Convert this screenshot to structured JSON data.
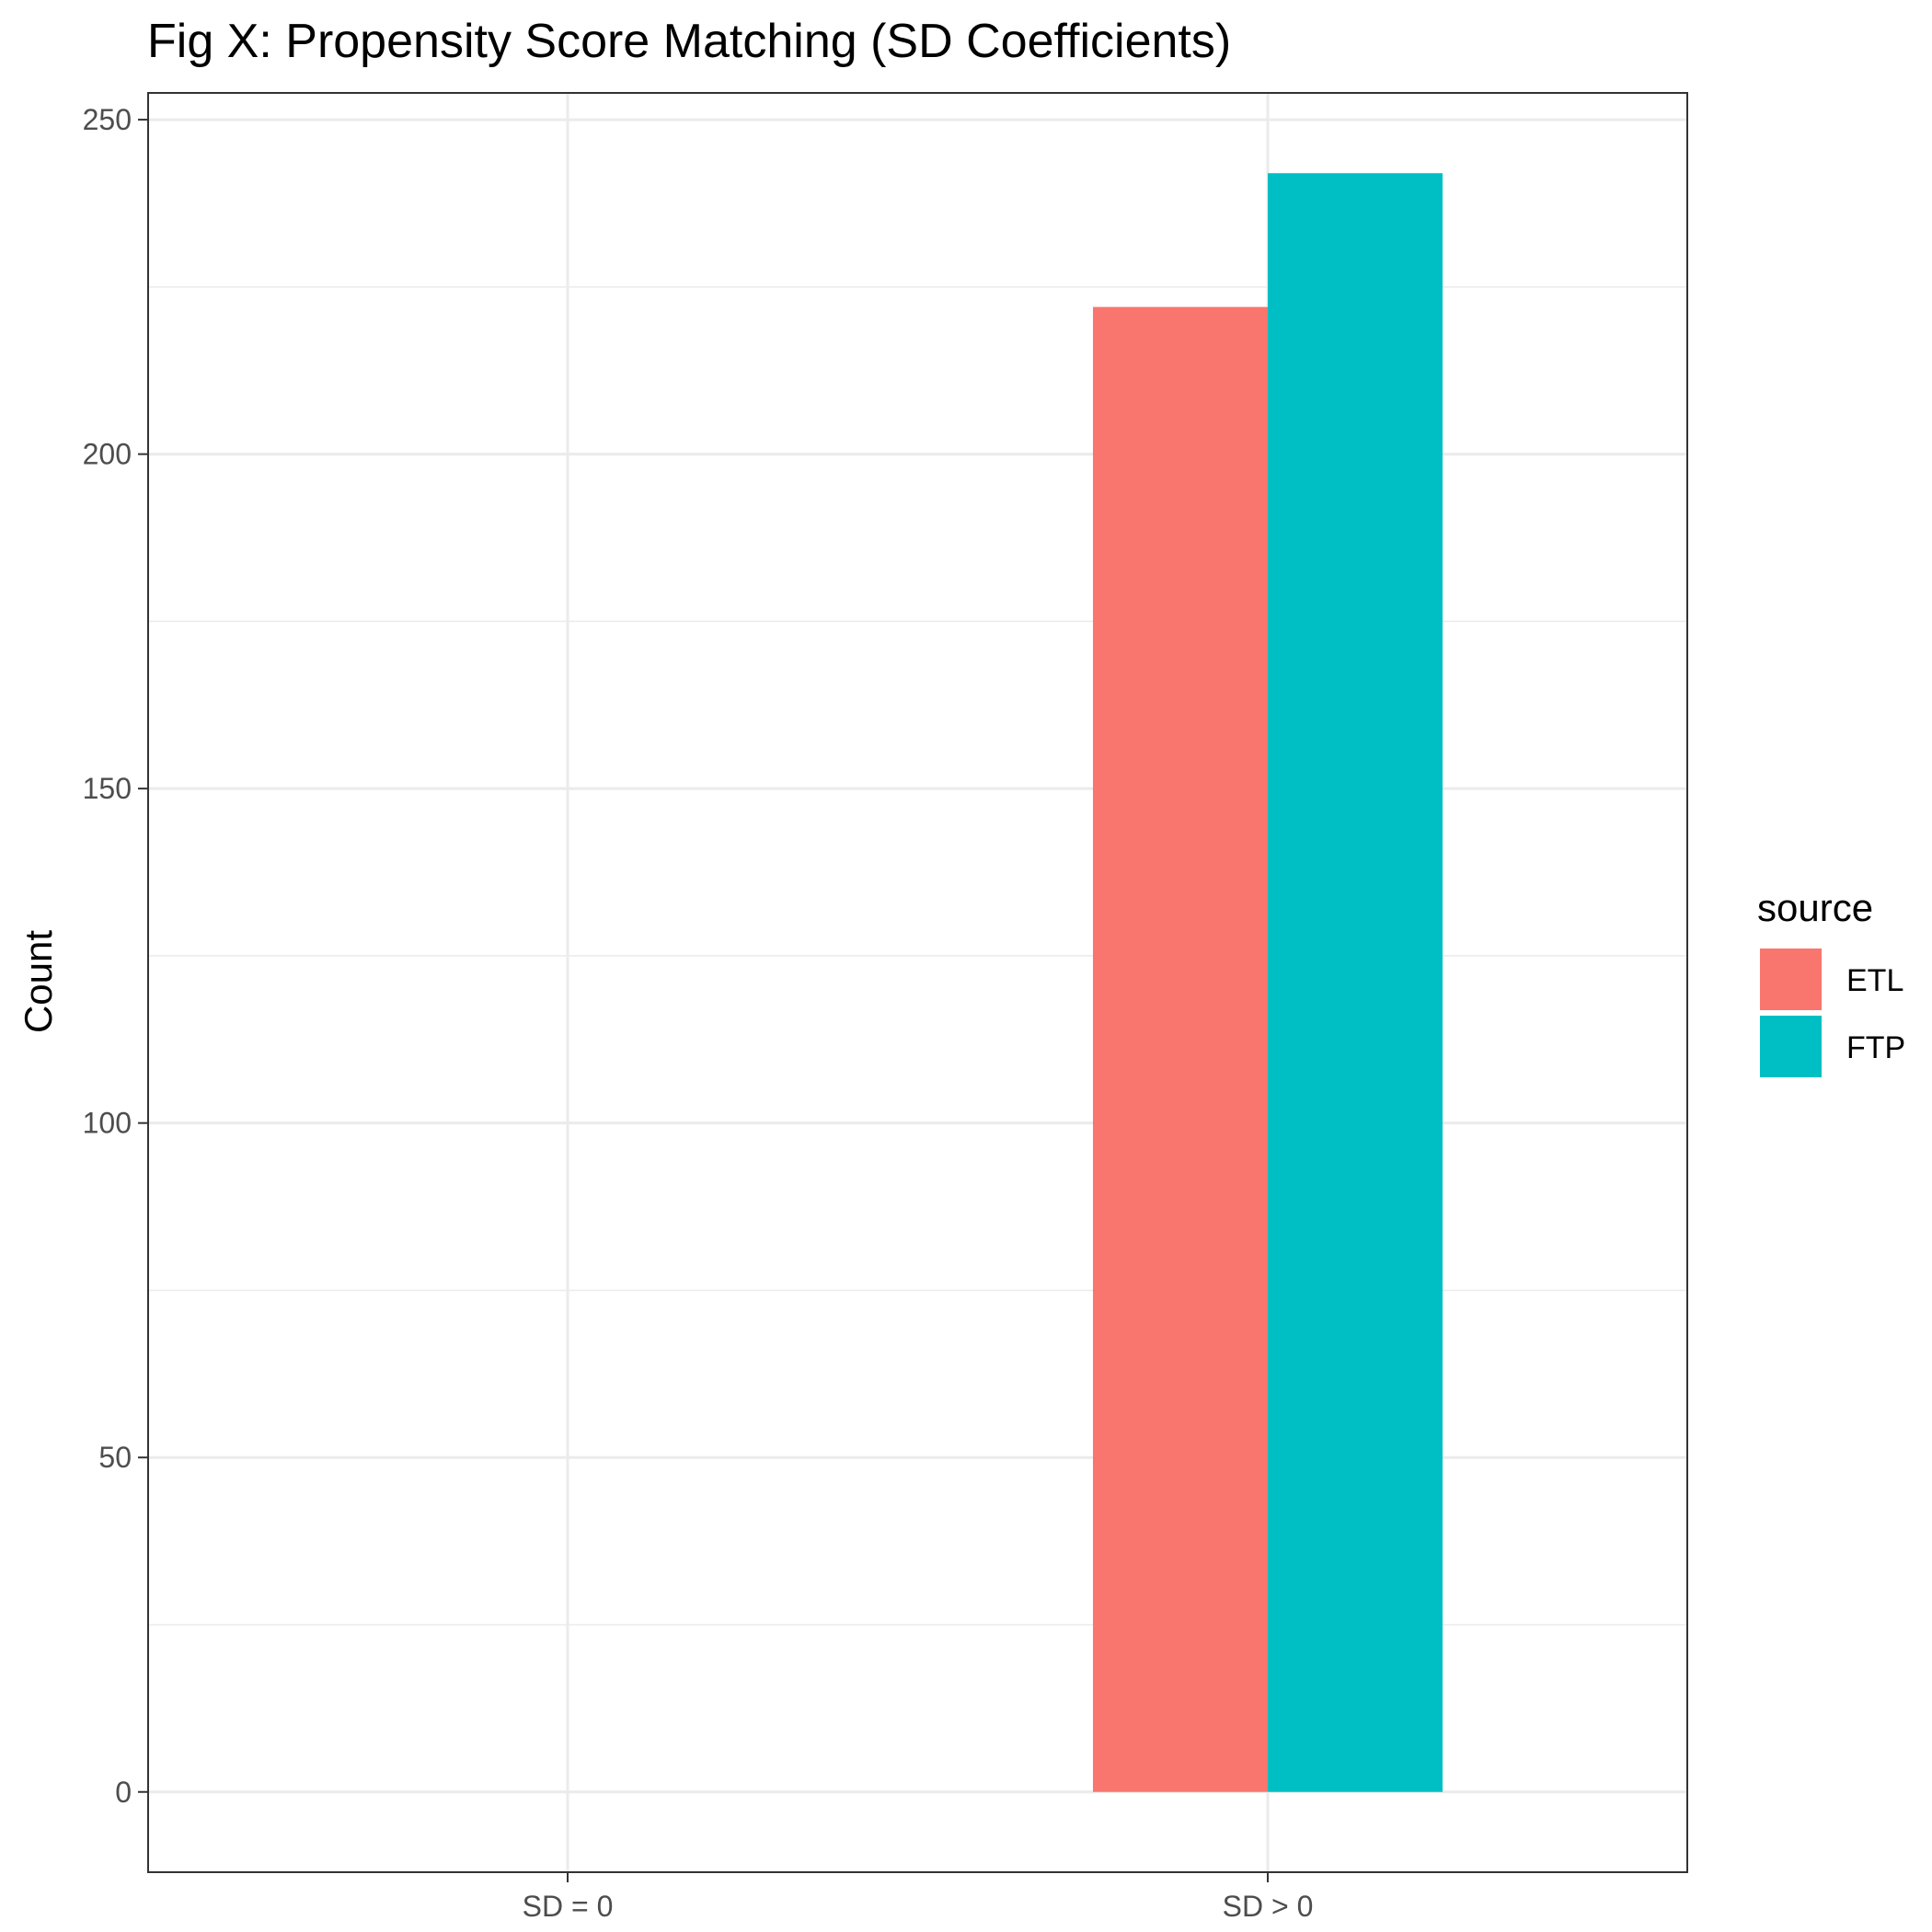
{
  "chart_data": {
    "type": "bar",
    "title": "Fig X: Propensity Score Matching (SD Coefficients)",
    "xlabel": "",
    "ylabel": "Count",
    "categories": [
      "SD = 0",
      "SD > 0"
    ],
    "series": [
      {
        "name": "ETL",
        "values": [
          0,
          222
        ],
        "color": "#F8766D"
      },
      {
        "name": "FTP",
        "values": [
          0,
          242
        ],
        "color": "#00BFC4"
      }
    ],
    "yticks": [
      0,
      50,
      100,
      150,
      200,
      250
    ],
    "ylim": [
      -12,
      254
    ],
    "grid": true,
    "legend": {
      "title": "source",
      "placement": "right"
    }
  }
}
